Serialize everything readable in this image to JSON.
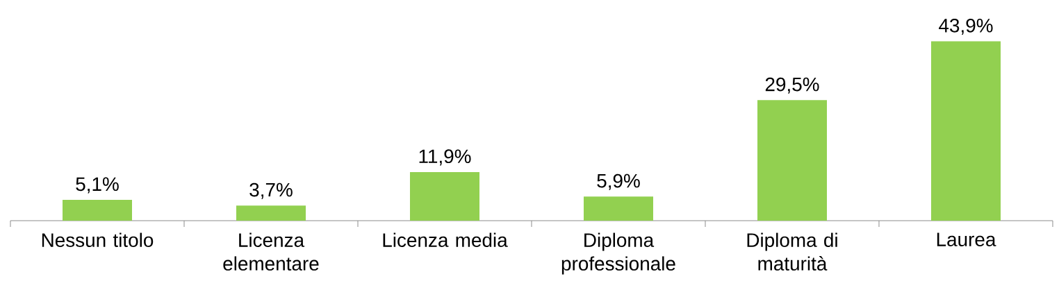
{
  "chart_data": {
    "type": "bar",
    "categories": [
      "Nessun titolo",
      "Licenza elementare",
      "Licenza media",
      "Diploma professionale",
      "Diploma di maturità",
      "Laurea"
    ],
    "values": [
      5.1,
      3.7,
      11.9,
      5.9,
      29.5,
      43.9
    ],
    "value_labels": [
      "5,1%",
      "3,7%",
      "11,9%",
      "5,9%",
      "29,5%",
      "43,9%"
    ],
    "color": "#92d050"
  }
}
